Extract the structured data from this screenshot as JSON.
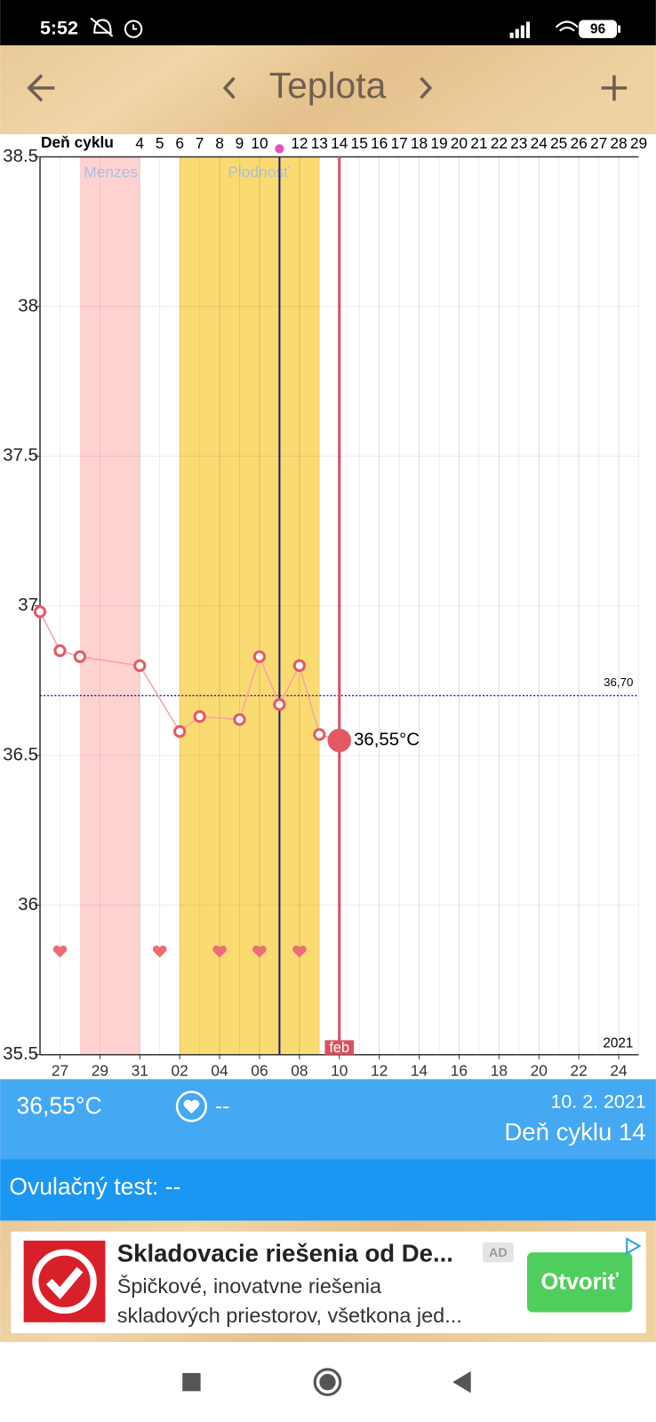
{
  "status_bar": {
    "time": "5:52",
    "battery": "96"
  },
  "toolbar": {
    "title": "Teplota"
  },
  "chart": {
    "type": "line",
    "x_axis_title": "Deň cyklu",
    "xlim": [
      -1,
      29
    ],
    "ylim": [
      35.5,
      38.5
    ],
    "yticks": [
      35.5,
      36,
      36.5,
      37,
      37.5,
      38,
      38.5
    ],
    "cycle_day_ticks": [
      4,
      5,
      6,
      7,
      8,
      9,
      10,
      12,
      13,
      14,
      15,
      16,
      17,
      18,
      19,
      20,
      21,
      22,
      23,
      24,
      25,
      26,
      27,
      28,
      29
    ],
    "date_ticks": [
      {
        "value": 0,
        "label": "27"
      },
      {
        "value": 2,
        "label": "29"
      },
      {
        "value": 4,
        "label": "31"
      },
      {
        "value": 6,
        "label": "02"
      },
      {
        "value": 8,
        "label": "04"
      },
      {
        "value": 10,
        "label": "06"
      },
      {
        "value": 12,
        "label": "08"
      },
      {
        "value": 14,
        "label": "10"
      },
      {
        "value": 16,
        "label": "12"
      },
      {
        "value": 18,
        "label": "14"
      },
      {
        "value": 20,
        "label": "16"
      },
      {
        "value": 22,
        "label": "18"
      },
      {
        "value": 24,
        "label": "20"
      },
      {
        "value": 26,
        "label": "22"
      },
      {
        "value": 28,
        "label": "24"
      }
    ],
    "month_label": "feb",
    "year_label": "2021",
    "bands": [
      {
        "name": "Menzes",
        "from": 1,
        "to": 4,
        "color": "#ffd2d2"
      },
      {
        "name": "Plodnosť",
        "from": 6,
        "to": 13,
        "color": "#fadb72"
      }
    ],
    "ovulation_day": 11,
    "current_day": 14,
    "reference_line": {
      "value": 36.7,
      "label": "36,70"
    },
    "x": [
      -1,
      0,
      1,
      4,
      6,
      7,
      9,
      10,
      11,
      12,
      13,
      14
    ],
    "values": [
      36.98,
      36.85,
      36.83,
      36.8,
      36.58,
      36.63,
      36.62,
      36.83,
      36.67,
      36.8,
      36.57,
      36.55
    ],
    "color": "#e45a64",
    "current_value_label": "36,55°C",
    "heart_days": [
      0,
      5,
      8,
      10,
      12
    ],
    "grid": true
  },
  "info": {
    "temperature": "36,55°C",
    "heart": "--",
    "date": "10. 2. 2021",
    "cycle_day": "Deň cyklu 14",
    "ovulation_test": "Ovulačný test: --"
  },
  "ad": {
    "title": "Skladovacie riešenia od De...",
    "badge": "AD",
    "line1": "Špičkové, inovatvne riešenia",
    "line2": "skladových priestorov, všetkona jed...",
    "button": "Otvoriť"
  }
}
